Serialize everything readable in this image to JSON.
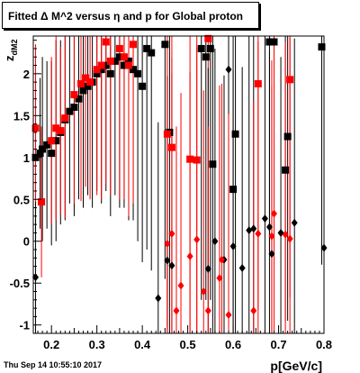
{
  "chart_data": {
    "type": "scatter",
    "title": "Fitted Δ M^2 versus η and p for Global proton",
    "xlabel": "p[GeV/c]",
    "ylabel": "z_dM2",
    "xlim": [
      0.16,
      0.8
    ],
    "ylim": [
      -1.1,
      2.45
    ],
    "xticks": [
      "0.2",
      "0.3",
      "0.4",
      "0.5",
      "0.6",
      "0.7",
      "0.8"
    ],
    "xtick_values": [
      0.2,
      0.3,
      0.4,
      0.5,
      0.6,
      0.7,
      0.8
    ],
    "yticks": [
      "-1",
      "-0.5",
      "0",
      "0.5",
      "1",
      "1.5",
      "2"
    ],
    "ytick_values": [
      -1,
      -0.5,
      0,
      0.5,
      1,
      1.5,
      2
    ],
    "grid": false,
    "series": [
      {
        "color": "#000000",
        "marker": "square",
        "points": [
          [
            0.165,
            1.0,
            1.0
          ],
          [
            0.175,
            1.05,
            0.9
          ],
          [
            0.18,
            1.1,
            1.1
          ],
          [
            0.19,
            1.15,
            1.0
          ],
          [
            0.2,
            1.05,
            1.1
          ],
          [
            0.21,
            1.2,
            1.2
          ],
          [
            0.22,
            1.3,
            1.1
          ],
          [
            0.23,
            1.45,
            1.2
          ],
          [
            0.24,
            1.55,
            1.1
          ],
          [
            0.25,
            1.6,
            1.3
          ],
          [
            0.26,
            1.7,
            1.2
          ],
          [
            0.27,
            1.8,
            1.4
          ],
          [
            0.28,
            1.85,
            1.3
          ],
          [
            0.29,
            1.9,
            1.5
          ],
          [
            0.3,
            2.0,
            1.4
          ],
          [
            0.31,
            2.05,
            1.6
          ],
          [
            0.32,
            2.1,
            1.5
          ],
          [
            0.33,
            2.0,
            1.7
          ],
          [
            0.34,
            2.15,
            1.6
          ],
          [
            0.35,
            2.2,
            1.8
          ],
          [
            0.36,
            2.1,
            1.7
          ],
          [
            0.37,
            2.15,
            1.9
          ],
          [
            0.38,
            2.05,
            1.8
          ],
          [
            0.39,
            2.0,
            2.0
          ],
          [
            0.4,
            1.85,
            2.1
          ],
          [
            0.41,
            2.3,
            2.4
          ],
          [
            0.42,
            2.25,
            2.6
          ],
          [
            0.45,
            2.35,
            2.8
          ],
          [
            0.46,
            1.3,
            3.0
          ],
          [
            0.54,
            2.2,
            2.9
          ],
          [
            0.55,
            2.3,
            3.0
          ],
          [
            0.555,
            0.92,
            2.6
          ],
          [
            0.6,
            0.62,
            2.4
          ],
          [
            0.605,
            1.28,
            2.5
          ],
          [
            0.72,
            1.25,
            2.2
          ],
          [
            0.715,
            0.85,
            1.8
          ],
          [
            0.68,
            2.38,
            2.5
          ],
          [
            0.69,
            2.38,
            2.4
          ],
          [
            0.795,
            2.32,
            2.6
          ],
          [
            0.53,
            2.3,
            3.0
          ]
        ]
      },
      {
        "color": "#ff0000",
        "marker": "square",
        "points": [
          [
            0.165,
            1.35,
            1.0
          ],
          [
            0.178,
            0.47,
            0.9
          ],
          [
            0.2,
            1.2,
            1.0
          ],
          [
            0.21,
            1.35,
            1.1
          ],
          [
            0.22,
            1.32,
            1.0
          ],
          [
            0.23,
            1.47,
            1.2
          ],
          [
            0.25,
            1.75,
            1.3
          ],
          [
            0.265,
            1.88,
            1.4
          ],
          [
            0.275,
            1.95,
            1.3
          ],
          [
            0.285,
            1.9,
            1.4
          ],
          [
            0.3,
            2.05,
            1.5
          ],
          [
            0.31,
            2.1,
            1.6
          ],
          [
            0.32,
            2.38,
            1.7
          ],
          [
            0.33,
            2.15,
            1.6
          ],
          [
            0.35,
            2.3,
            1.8
          ],
          [
            0.36,
            2.2,
            1.7
          ],
          [
            0.37,
            2.1,
            1.8
          ],
          [
            0.38,
            2.35,
            1.9
          ],
          [
            0.455,
            1.28,
            2.3
          ],
          [
            0.465,
            1.12,
            2.4
          ],
          [
            0.505,
            0.98,
            2.5
          ],
          [
            0.52,
            0.97,
            2.6
          ],
          [
            0.545,
            2.42,
            2.8
          ],
          [
            0.655,
            1.88,
            2.7
          ],
          [
            0.725,
            1.93,
            2.6
          ]
        ]
      },
      {
        "color": "#000000",
        "marker": "diamond",
        "points": [
          [
            0.165,
            -0.43,
            0.9
          ],
          [
            0.435,
            -0.68,
            2.1
          ],
          [
            0.455,
            -0.23,
            2.2
          ],
          [
            0.465,
            -0.29,
            2.3
          ],
          [
            0.545,
            -0.33,
            2.4
          ],
          [
            0.56,
            0.0,
            2.3
          ],
          [
            0.58,
            -0.22,
            2.2
          ],
          [
            0.59,
            2.05,
            2.1
          ],
          [
            0.62,
            -0.32,
            2.4
          ],
          [
            0.635,
            0.13,
            2.5
          ],
          [
            0.645,
            0.15,
            2.3
          ],
          [
            0.67,
            0.27,
            2.2
          ],
          [
            0.685,
            -0.15,
            2.0
          ],
          [
            0.705,
            0.1,
            2.1
          ],
          [
            0.735,
            0.22,
            2.2
          ],
          [
            0.8,
            -0.08,
            2.3
          ],
          [
            0.6,
            -0.06,
            2.1
          ],
          [
            0.68,
            0.17,
            2.1
          ]
        ]
      },
      {
        "color": "#ff0000",
        "marker": "diamond",
        "points": [
          [
            0.455,
            -0.03,
            2.0
          ],
          [
            0.465,
            0.09,
            2.1
          ],
          [
            0.475,
            -0.83,
            2.2
          ],
          [
            0.485,
            -0.53,
            2.3
          ],
          [
            0.505,
            -0.18,
            2.2
          ],
          [
            0.52,
            0.02,
            2.3
          ],
          [
            0.535,
            -0.6,
            2.4
          ],
          [
            0.545,
            -0.83,
            2.2
          ],
          [
            0.57,
            -0.44,
            2.3
          ],
          [
            0.575,
            -0.22,
            2.1
          ],
          [
            0.59,
            -0.88,
            2.4
          ],
          [
            0.645,
            -0.83,
            2.5
          ],
          [
            0.655,
            0.09,
            2.3
          ],
          [
            0.69,
            0.33,
            2.2
          ],
          [
            0.715,
            0.08,
            2.3
          ],
          [
            0.725,
            0.03,
            2.4
          ],
          [
            0.685,
            0.06,
            2.1
          ]
        ]
      }
    ]
  },
  "footer": {
    "date": "Thu Sep 14 10:55:10 2017"
  }
}
